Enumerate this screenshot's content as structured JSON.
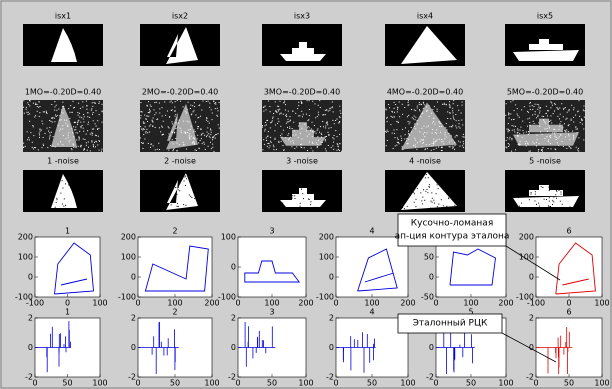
{
  "row1_titles": [
    "isx1",
    "isx2",
    "isx3",
    "isx4",
    "isx5"
  ],
  "row2_titles": [
    "1MO=-0.20D=0.40",
    "2MO=-0.20D=0.40",
    "3MO=-0.20D=0.40",
    "4MO=-0.20D=0.40",
    "5MO=-0.20D=0.40"
  ],
  "row3_titles": [
    "1 -noise",
    "2 -noise",
    "3 -noise",
    "4 -noise",
    "5 -noise"
  ],
  "contour_plots": [
    {
      "title": "1",
      "yticks": [
        200,
        100,
        0,
        -100
      ],
      "xticks": [
        -100,
        0,
        100
      ]
    },
    {
      "title": "2",
      "yticks": [
        200,
        100,
        0,
        -100
      ],
      "xticks": [
        0,
        100,
        200
      ]
    },
    {
      "title": "3",
      "yticks": [
        100,
        0,
        -100
      ],
      "xticks": [
        0,
        100,
        200
      ]
    },
    {
      "title": "4",
      "yticks": [
        200,
        100,
        0,
        -100
      ],
      "xticks": [
        0,
        100,
        200
      ]
    },
    {
      "title": "5",
      "yticks": [
        100,
        50,
        0,
        -50
      ],
      "xticks": [
        0,
        100,
        200
      ]
    },
    {
      "title": "6",
      "yticks": [
        200,
        100,
        0,
        -100
      ],
      "xticks": [
        -100,
        0,
        100
      ]
    }
  ],
  "rck_plots": [
    {
      "title": "1",
      "yticks": [
        2,
        0,
        -2
      ],
      "xticks": [
        0,
        50,
        100
      ]
    },
    {
      "title": "2",
      "yticks": [
        2,
        0,
        -2
      ],
      "xticks": [
        0,
        50,
        100
      ]
    },
    {
      "title": "3",
      "yticks": [
        2,
        0,
        -2
      ],
      "xticks": [
        0,
        50,
        100
      ]
    },
    {
      "title": "4",
      "yticks": [
        2,
        0,
        -2
      ],
      "xticks": [
        0,
        50,
        100
      ]
    },
    {
      "title": "5",
      "yticks": [
        2,
        0,
        -2
      ],
      "xticks": [
        0,
        50,
        100
      ]
    },
    {
      "title": "6",
      "yticks": [
        2,
        0,
        -2
      ],
      "xticks": [
        0,
        50,
        100
      ]
    }
  ],
  "annotations": [
    {
      "lines": [
        "Кусочно-ломаная",
        "ап-ция контура эталона"
      ]
    },
    {
      "lines": [
        "Эталонный РЦК"
      ]
    }
  ]
}
